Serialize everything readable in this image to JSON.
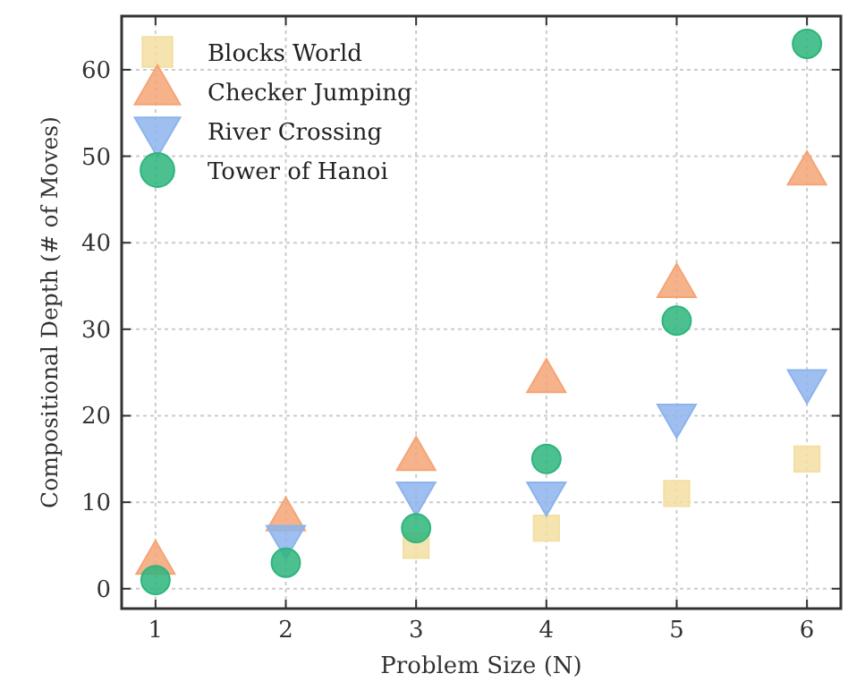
{
  "chart_data": {
    "type": "scatter",
    "xlabel": "Problem Size (N)",
    "ylabel": "Compositional Depth (# of Moves)",
    "x": [
      1,
      2,
      3,
      4,
      5,
      6
    ],
    "xlim": [
      0.74,
      6.26
    ],
    "ylim": [
      -2.3,
      66.2
    ],
    "xticks": [
      1,
      2,
      3,
      4,
      5,
      6
    ],
    "yticks": [
      0,
      10,
      20,
      30,
      40,
      50,
      60
    ],
    "grid": true,
    "legend": "top left",
    "series": [
      {
        "name": "Blocks World",
        "color": "#f3dfa2",
        "marker": "square",
        "values": [
          null,
          null,
          5,
          7,
          11,
          15
        ]
      },
      {
        "name": "Checker Jumping",
        "color": "#f5a576",
        "marker": "triangle",
        "values": [
          3,
          8,
          15,
          24,
          35,
          48
        ]
      },
      {
        "name": "River Crossing",
        "color": "#8db4ec",
        "marker": "triangle-down",
        "values": [
          null,
          6,
          11,
          11,
          20,
          24
        ]
      },
      {
        "name": "Tower of Hanoi",
        "color": "#2eb57d",
        "marker": "circle",
        "values": [
          1,
          3,
          7,
          15,
          31,
          63
        ]
      }
    ]
  }
}
